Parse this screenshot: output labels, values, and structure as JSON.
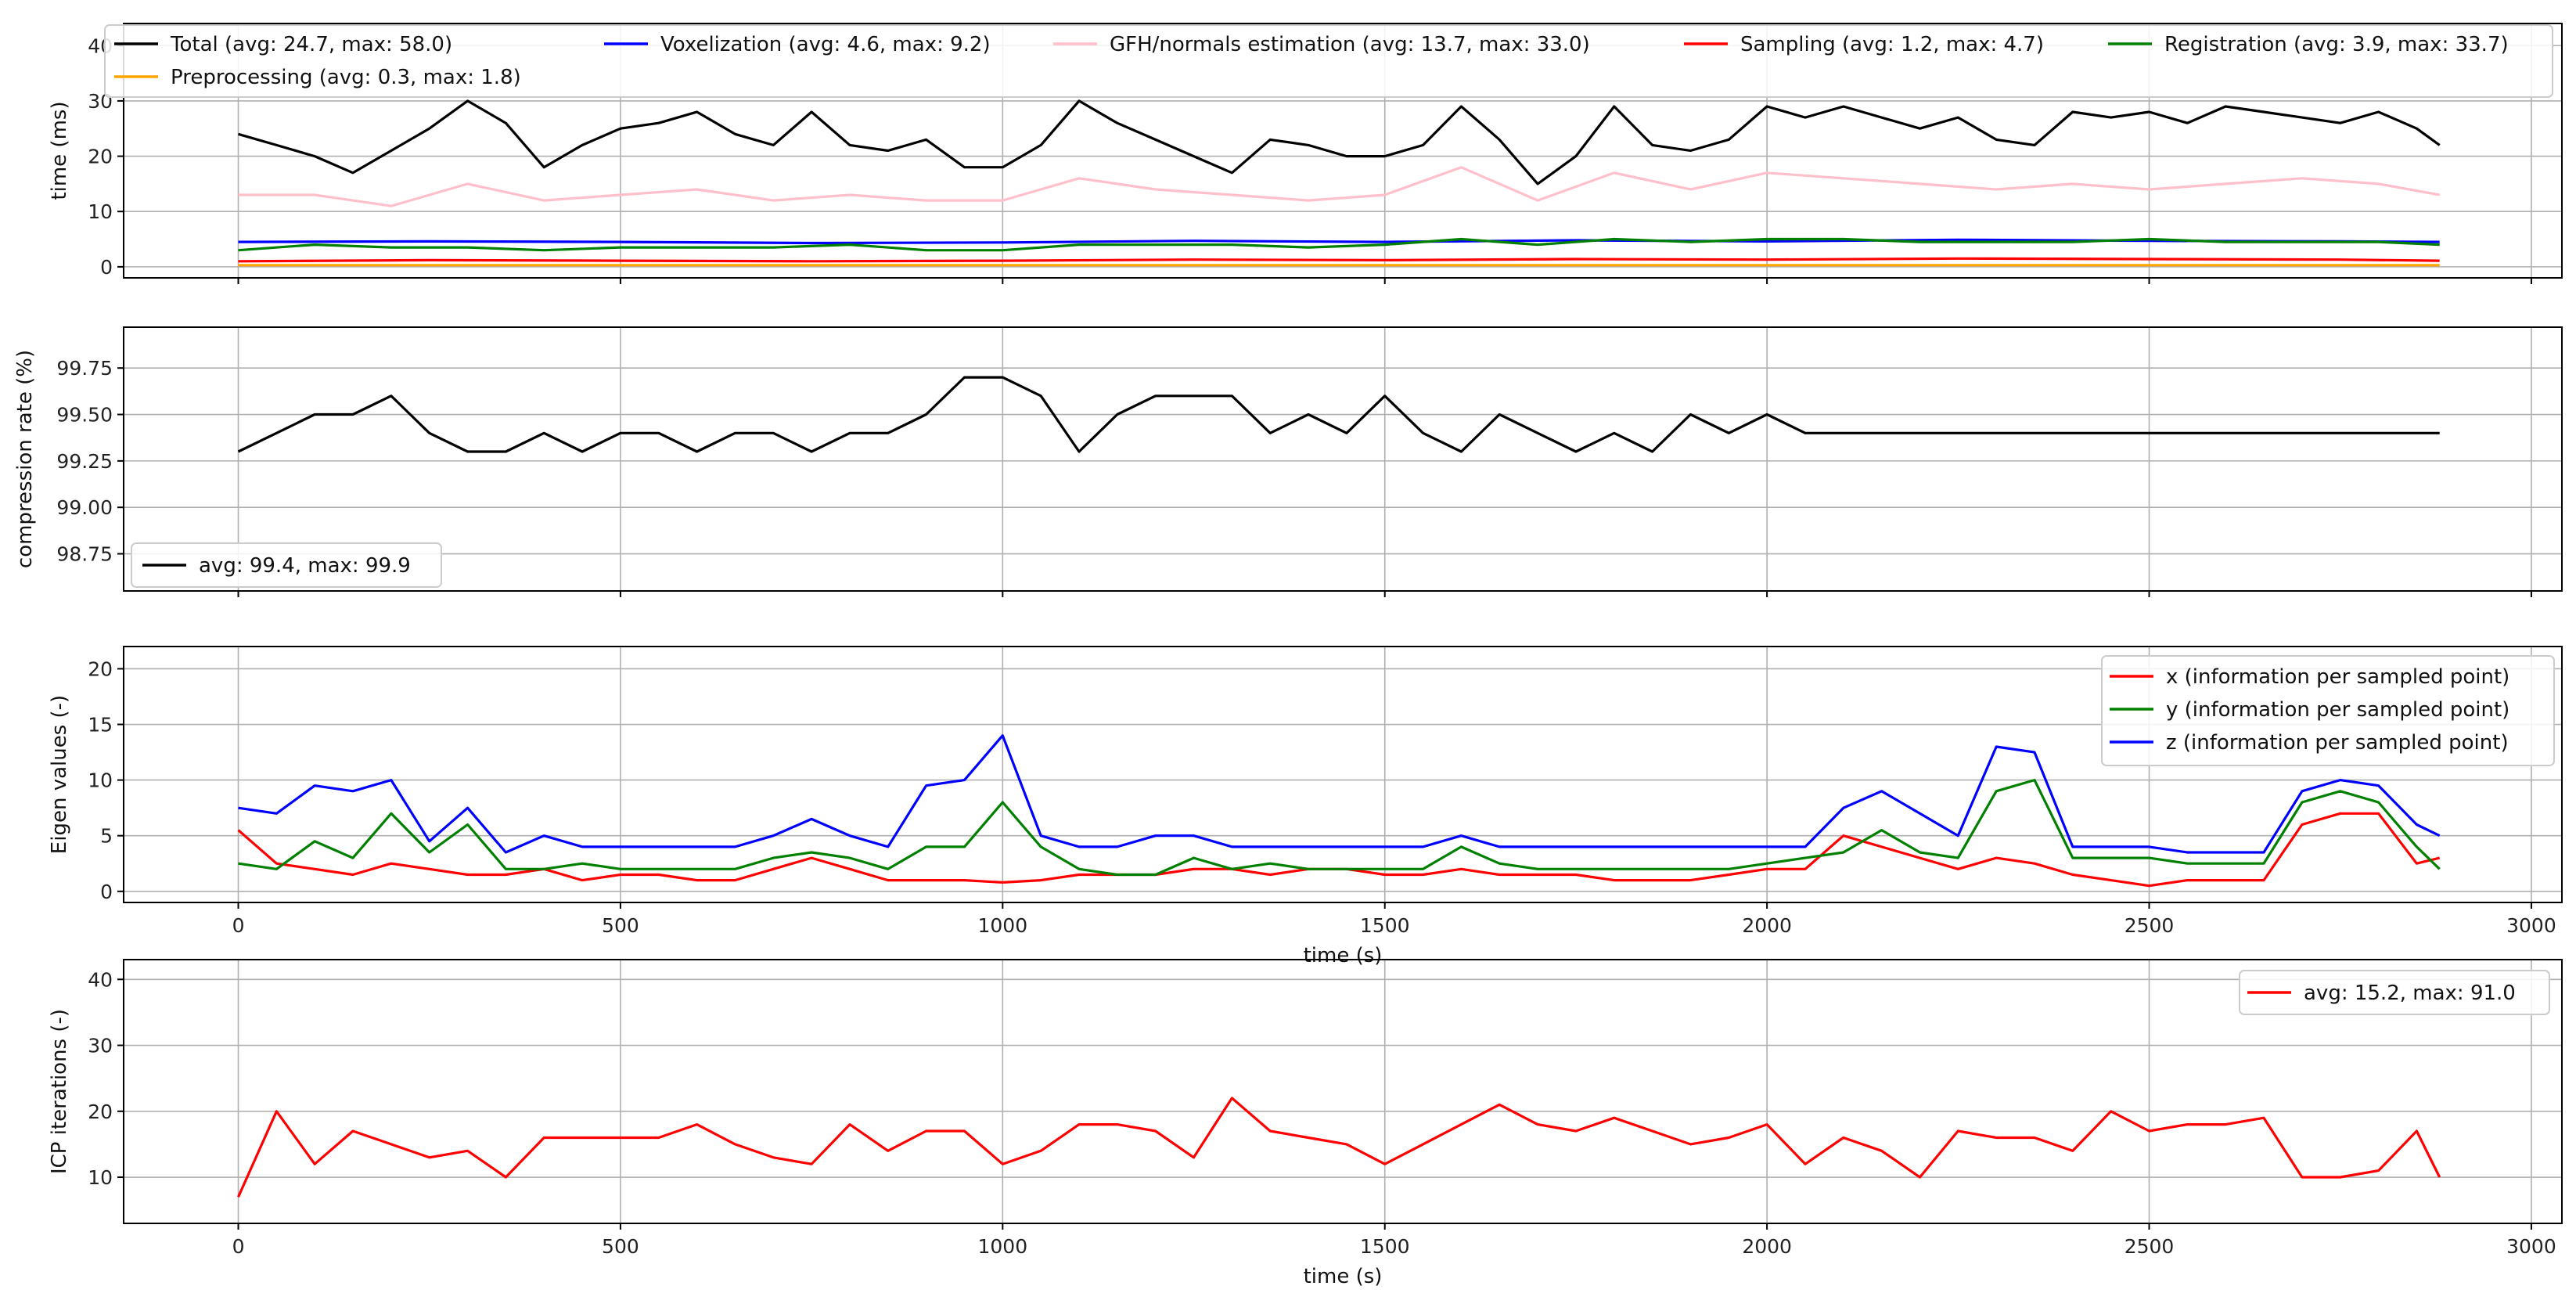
{
  "chart_data": [
    {
      "type": "line",
      "panel": "timing",
      "ylabel": "time (ms)",
      "xlabel": "",
      "xlim": [
        -150,
        3040
      ],
      "ylim": [
        -2,
        44
      ],
      "yticks": [
        0,
        10,
        20,
        30,
        40
      ],
      "xticks": [
        0,
        500,
        1000,
        1500,
        2000,
        2500,
        3000
      ],
      "show_xtick_labels": false,
      "grid": true,
      "legend_position": "top (spanning full width, 5 columns)",
      "series": [
        {
          "name": "Total (avg: 24.7, max: 58.0)",
          "color": "#000000",
          "x": [
            0,
            50,
            100,
            150,
            200,
            250,
            300,
            350,
            400,
            450,
            500,
            550,
            600,
            650,
            700,
            750,
            800,
            850,
            900,
            950,
            1000,
            1050,
            1100,
            1150,
            1200,
            1250,
            1300,
            1350,
            1400,
            1450,
            1500,
            1550,
            1600,
            1650,
            1700,
            1750,
            1800,
            1850,
            1900,
            1950,
            2000,
            2050,
            2100,
            2150,
            2200,
            2250,
            2300,
            2350,
            2400,
            2450,
            2500,
            2550,
            2600,
            2650,
            2700,
            2750,
            2800,
            2850,
            2880
          ],
          "values": [
            24,
            22,
            20,
            17,
            21,
            25,
            30,
            26,
            18,
            22,
            25,
            26,
            28,
            24,
            22,
            28,
            22,
            21,
            23,
            18,
            18,
            22,
            30,
            26,
            23,
            20,
            17,
            23,
            22,
            20,
            20,
            22,
            29,
            23,
            15,
            20,
            29,
            22,
            21,
            23,
            29,
            27,
            29,
            27,
            25,
            27,
            23,
            22,
            28,
            27,
            28,
            26,
            29,
            28,
            27,
            26,
            28,
            25,
            22
          ],
          "max": 58.0
        },
        {
          "name": "Preprocessing (avg: 0.3, max: 1.8)",
          "color": "#ffa500",
          "x": [
            0,
            500,
            1000,
            1500,
            2000,
            2500,
            2880
          ],
          "values": [
            0.3,
            0.3,
            0.3,
            0.3,
            0.3,
            0.3,
            0.3
          ],
          "max": 1.8
        },
        {
          "name": "Voxelization (avg: 4.6, max: 9.2)",
          "color": "#0000ff",
          "x": [
            0,
            250,
            500,
            750,
            1000,
            1250,
            1500,
            1750,
            2000,
            2250,
            2500,
            2750,
            2880
          ],
          "values": [
            4.5,
            4.6,
            4.5,
            4.3,
            4.4,
            4.7,
            4.5,
            4.8,
            4.6,
            4.9,
            4.7,
            4.6,
            4.5
          ],
          "max": 9.2
        },
        {
          "name": "GFH/normals estimation (avg: 13.7, max: 33.0)",
          "color": "#ffc0cb",
          "x": [
            0,
            100,
            200,
            300,
            400,
            500,
            600,
            700,
            800,
            900,
            1000,
            1100,
            1200,
            1300,
            1400,
            1500,
            1600,
            1700,
            1800,
            1900,
            2000,
            2100,
            2200,
            2300,
            2400,
            2500,
            2600,
            2700,
            2800,
            2880
          ],
          "values": [
            13,
            13,
            11,
            15,
            12,
            13,
            14,
            12,
            13,
            12,
            12,
            16,
            14,
            13,
            12,
            13,
            18,
            12,
            17,
            14,
            17,
            16,
            15,
            14,
            15,
            14,
            15,
            16,
            15,
            13
          ],
          "max": 33.0
        },
        {
          "name": "Sampling (avg: 1.2, max: 4.7)",
          "color": "#ff0000",
          "x": [
            0,
            250,
            500,
            750,
            1000,
            1250,
            1500,
            1750,
            2000,
            2250,
            2500,
            2750,
            2880
          ],
          "values": [
            1.0,
            1.2,
            1.1,
            1.0,
            1.1,
            1.3,
            1.2,
            1.4,
            1.3,
            1.5,
            1.4,
            1.3,
            1.1
          ],
          "max": 4.7
        },
        {
          "name": "Registration (avg: 3.9, max: 33.7)",
          "color": "#008000",
          "x": [
            0,
            100,
            200,
            300,
            400,
            500,
            600,
            700,
            800,
            900,
            1000,
            1100,
            1200,
            1300,
            1400,
            1500,
            1600,
            1700,
            1800,
            1900,
            2000,
            2100,
            2200,
            2300,
            2400,
            2500,
            2600,
            2700,
            2800,
            2880
          ],
          "values": [
            3.0,
            4.0,
            3.5,
            3.5,
            3.0,
            3.5,
            3.5,
            3.5,
            4.0,
            3.0,
            3.0,
            4.0,
            4.0,
            4.0,
            3.5,
            4.0,
            5.0,
            4.0,
            5.0,
            4.5,
            5.0,
            5.0,
            4.5,
            4.5,
            4.5,
            5.0,
            4.5,
            4.5,
            4.5,
            4.0
          ],
          "max": 33.7
        }
      ]
    },
    {
      "type": "line",
      "panel": "compression",
      "ylabel": "compression rate (%)",
      "xlabel": "",
      "xlim": [
        -150,
        3040
      ],
      "ylim": [
        98.55,
        99.97
      ],
      "yticks": [
        98.75,
        99.0,
        99.25,
        99.5,
        99.75
      ],
      "ytick_labels": [
        "98.75",
        "99.00",
        "99.25",
        "99.50",
        "99.75"
      ],
      "xticks": [
        0,
        500,
        1000,
        1500,
        2000,
        2500,
        3000
      ],
      "show_xtick_labels": false,
      "grid": true,
      "legend_position": "lower left",
      "series": [
        {
          "name": "avg: 99.4, max: 99.9",
          "color": "#000000",
          "x": [
            0,
            50,
            100,
            150,
            200,
            250,
            300,
            350,
            400,
            450,
            500,
            550,
            600,
            650,
            700,
            750,
            800,
            850,
            900,
            950,
            1000,
            1050,
            1100,
            1150,
            1200,
            1250,
            1300,
            1350,
            1400,
            1450,
            1500,
            1550,
            1600,
            1650,
            1700,
            1750,
            1800,
            1850,
            1900,
            1950,
            2000,
            2050,
            2100,
            2150,
            2200,
            2250,
            2300,
            2350,
            2400,
            2450,
            2500,
            2550,
            2600,
            2650,
            2700,
            2750,
            2800,
            2850,
            2880
          ],
          "values": [
            99.3,
            99.4,
            99.5,
            99.5,
            99.6,
            99.4,
            99.3,
            99.3,
            99.4,
            99.3,
            99.4,
            99.4,
            99.3,
            99.4,
            99.4,
            99.3,
            99.4,
            99.4,
            99.5,
            99.7,
            99.7,
            99.6,
            99.3,
            99.5,
            99.6,
            99.6,
            99.6,
            99.4,
            99.5,
            99.4,
            99.6,
            99.4,
            99.3,
            99.5,
            99.4,
            99.3,
            99.4,
            99.3,
            99.5,
            99.4,
            99.5,
            99.4,
            99.4,
            99.4,
            99.4,
            99.4,
            99.4,
            99.4,
            99.4,
            99.4,
            99.4,
            99.4,
            99.4,
            99.4,
            99.4,
            99.4,
            99.4,
            99.4,
            99.4
          ]
        }
      ]
    },
    {
      "type": "line",
      "panel": "eigen",
      "ylabel": "Eigen values (-)",
      "xlabel": "time (s)",
      "xlim": [
        -150,
        3040
      ],
      "ylim": [
        -1,
        22
      ],
      "yticks": [
        0,
        5,
        10,
        15,
        20
      ],
      "xticks": [
        0,
        500,
        1000,
        1500,
        2000,
        2500,
        3000
      ],
      "show_xtick_labels": true,
      "grid": true,
      "legend_position": "upper right",
      "series": [
        {
          "name": "x (information per sampled point)",
          "color": "#ff0000",
          "x": [
            0,
            50,
            100,
            150,
            200,
            250,
            300,
            350,
            400,
            450,
            500,
            550,
            600,
            650,
            700,
            750,
            800,
            850,
            900,
            950,
            1000,
            1050,
            1100,
            1150,
            1200,
            1250,
            1300,
            1350,
            1400,
            1450,
            1500,
            1550,
            1600,
            1650,
            1700,
            1750,
            1800,
            1850,
            1900,
            1950,
            2000,
            2050,
            2100,
            2150,
            2200,
            2250,
            2300,
            2350,
            2400,
            2450,
            2500,
            2550,
            2600,
            2650,
            2700,
            2750,
            2800,
            2850,
            2880
          ],
          "values": [
            5.5,
            2.5,
            2.0,
            1.5,
            2.5,
            2.0,
            1.5,
            1.5,
            2.0,
            1.0,
            1.5,
            1.5,
            1.0,
            1.0,
            2.0,
            3.0,
            2.0,
            1.0,
            1.0,
            1.0,
            0.8,
            1.0,
            1.5,
            1.5,
            1.5,
            2.0,
            2.0,
            1.5,
            2.0,
            2.0,
            1.5,
            1.5,
            2.0,
            1.5,
            1.5,
            1.5,
            1.0,
            1.0,
            1.0,
            1.5,
            2.0,
            2.0,
            5.0,
            4.0,
            3.0,
            2.0,
            3.0,
            2.5,
            1.5,
            1.0,
            0.5,
            1.0,
            1.0,
            1.0,
            6.0,
            7.0,
            7.0,
            2.5,
            3.0
          ]
        },
        {
          "name": "y (information per sampled point)",
          "color": "#008000",
          "x": [
            0,
            50,
            100,
            150,
            200,
            250,
            300,
            350,
            400,
            450,
            500,
            550,
            600,
            650,
            700,
            750,
            800,
            850,
            900,
            950,
            1000,
            1050,
            1100,
            1150,
            1200,
            1250,
            1300,
            1350,
            1400,
            1450,
            1500,
            1550,
            1600,
            1650,
            1700,
            1750,
            1800,
            1850,
            1900,
            1950,
            2000,
            2050,
            2100,
            2150,
            2200,
            2250,
            2300,
            2350,
            2400,
            2450,
            2500,
            2550,
            2600,
            2650,
            2700,
            2750,
            2800,
            2850,
            2880
          ],
          "values": [
            2.5,
            2.0,
            4.5,
            3.0,
            7.0,
            3.5,
            6.0,
            2.0,
            2.0,
            2.5,
            2.0,
            2.0,
            2.0,
            2.0,
            3.0,
            3.5,
            3.0,
            2.0,
            4.0,
            4.0,
            8.0,
            4.0,
            2.0,
            1.5,
            1.5,
            3.0,
            2.0,
            2.5,
            2.0,
            2.0,
            2.0,
            2.0,
            4.0,
            2.5,
            2.0,
            2.0,
            2.0,
            2.0,
            2.0,
            2.0,
            2.5,
            3.0,
            3.5,
            5.5,
            3.5,
            3.0,
            9.0,
            10.0,
            3.0,
            3.0,
            3.0,
            2.5,
            2.5,
            2.5,
            8.0,
            9.0,
            8.0,
            4.0,
            2.0
          ]
        },
        {
          "name": "z (information per sampled point)",
          "color": "#0000ff",
          "x": [
            0,
            50,
            100,
            150,
            200,
            250,
            300,
            350,
            400,
            450,
            500,
            550,
            600,
            650,
            700,
            750,
            800,
            850,
            900,
            950,
            1000,
            1050,
            1100,
            1150,
            1200,
            1250,
            1300,
            1350,
            1400,
            1450,
            1500,
            1550,
            1600,
            1650,
            1700,
            1750,
            1800,
            1850,
            1900,
            1950,
            2000,
            2050,
            2100,
            2150,
            2200,
            2250,
            2300,
            2350,
            2400,
            2450,
            2500,
            2550,
            2600,
            2650,
            2700,
            2750,
            2800,
            2850,
            2880
          ],
          "values": [
            7.5,
            7.0,
            9.5,
            9.0,
            10.0,
            4.5,
            7.5,
            3.5,
            5.0,
            4.0,
            4.0,
            4.0,
            4.0,
            4.0,
            5.0,
            6.5,
            5.0,
            4.0,
            9.5,
            10.0,
            14.0,
            5.0,
            4.0,
            4.0,
            5.0,
            5.0,
            4.0,
            4.0,
            4.0,
            4.0,
            4.0,
            4.0,
            5.0,
            4.0,
            4.0,
            4.0,
            4.0,
            4.0,
            4.0,
            4.0,
            4.0,
            4.0,
            7.5,
            9.0,
            7.0,
            5.0,
            13.0,
            12.5,
            4.0,
            4.0,
            4.0,
            3.5,
            3.5,
            3.5,
            9.0,
            10.0,
            9.5,
            6.0,
            5.0
          ]
        }
      ]
    },
    {
      "type": "line",
      "panel": "icp",
      "ylabel": "ICP iterations (-)",
      "xlabel": "time (s)",
      "xlim": [
        -150,
        3040
      ],
      "ylim": [
        3,
        43
      ],
      "yticks": [
        10,
        20,
        30,
        40
      ],
      "xticks": [
        0,
        500,
        1000,
        1500,
        2000,
        2500,
        3000
      ],
      "show_xtick_labels": true,
      "grid": true,
      "legend_position": "upper right",
      "series": [
        {
          "name": "avg: 15.2, max: 91.0",
          "color": "#ff0000",
          "x": [
            0,
            50,
            100,
            150,
            200,
            250,
            300,
            350,
            400,
            450,
            500,
            550,
            600,
            650,
            700,
            750,
            800,
            850,
            900,
            950,
            1000,
            1050,
            1100,
            1150,
            1200,
            1250,
            1300,
            1350,
            1400,
            1450,
            1500,
            1550,
            1600,
            1650,
            1700,
            1750,
            1800,
            1850,
            1900,
            1950,
            2000,
            2050,
            2100,
            2150,
            2200,
            2250,
            2300,
            2350,
            2400,
            2450,
            2500,
            2550,
            2600,
            2650,
            2700,
            2750,
            2800,
            2850,
            2880
          ],
          "values": [
            7,
            20,
            12,
            17,
            15,
            13,
            14,
            10,
            16,
            16,
            16,
            16,
            18,
            15,
            13,
            12,
            18,
            14,
            17,
            17,
            12,
            14,
            18,
            18,
            17,
            13,
            22,
            17,
            16,
            15,
            12,
            15,
            18,
            21,
            18,
            17,
            19,
            17,
            15,
            16,
            18,
            12,
            16,
            14,
            10,
            17,
            16,
            16,
            14,
            20,
            17,
            18,
            18,
            19,
            10,
            10,
            11,
            17,
            10
          ]
        }
      ]
    }
  ]
}
